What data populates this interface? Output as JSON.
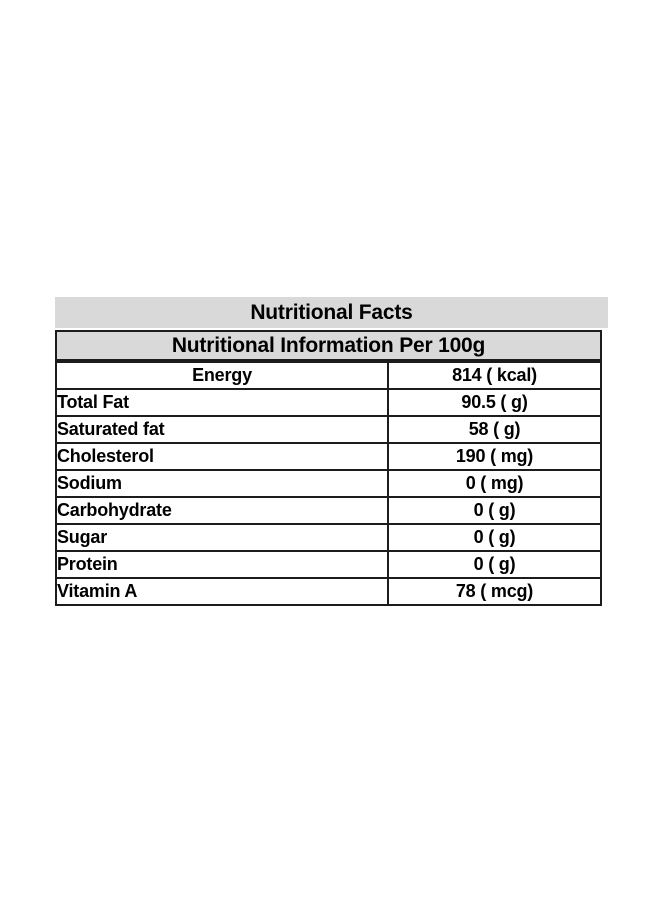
{
  "panel": {
    "title": "Nutritional Facts",
    "subtitle": "Nutritional Information Per 100g",
    "colors": {
      "header_background": "#d9d9d9",
      "border": "#1c1c1c",
      "text": "#000000",
      "page_background": "#ffffff"
    },
    "rows": [
      {
        "label": "Energy",
        "value": "814 ( kcal)",
        "label_align": "center"
      },
      {
        "label": "Total Fat",
        "value": "90.5 ( g)",
        "label_align": "left"
      },
      {
        "label": "Saturated fat",
        "value": "58 ( g)",
        "label_align": "left"
      },
      {
        "label": "Cholesterol",
        "value": "190 ( mg)",
        "label_align": "left"
      },
      {
        "label": "Sodium",
        "value": "0 ( mg)",
        "label_align": "left"
      },
      {
        "label": "Carbohydrate",
        "value": "0 ( g)",
        "label_align": "left"
      },
      {
        "label": "Sugar",
        "value": "0 ( g)",
        "label_align": "left"
      },
      {
        "label": "Protein",
        "value": "0 ( g)",
        "label_align": "left"
      },
      {
        "label": "Vitamin A",
        "value": "78 ( mcg)",
        "label_align": "left"
      }
    ]
  }
}
